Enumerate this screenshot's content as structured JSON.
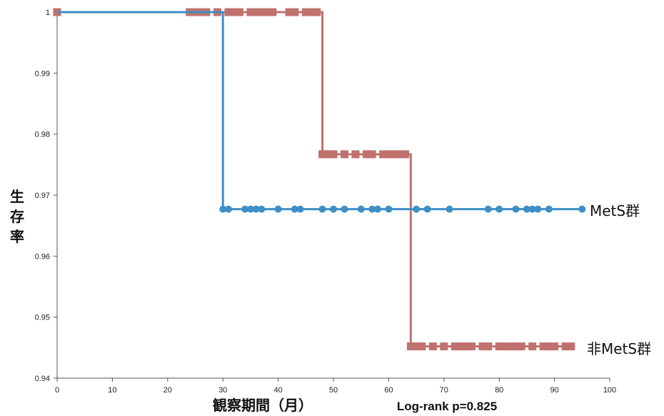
{
  "chart_data": {
    "type": "line",
    "title": "",
    "xlabel": "観察期間（月）",
    "ylabel": "生存率",
    "annotation": "Log-rank p=0.825",
    "xlim": [
      0,
      100
    ],
    "ylim": [
      0.94,
      1.0
    ],
    "x_ticks": [
      0,
      10,
      20,
      30,
      40,
      50,
      60,
      70,
      80,
      90,
      100
    ],
    "x_tick_labels": [
      "0",
      "10",
      "20",
      "30",
      "40",
      "50",
      "60",
      "70",
      "80",
      "90",
      "100"
    ],
    "y_ticks": [
      0.94,
      0.95,
      0.96,
      0.97,
      0.98,
      0.99,
      1.0
    ],
    "y_tick_labels": [
      "0.94",
      "0.95",
      "0.96",
      "0.97",
      "0.98",
      "0.99",
      "1"
    ],
    "grid": false,
    "series": [
      {
        "name": "MetS群",
        "color": "#3d8fc6",
        "marker": "circle",
        "step_x": [
          0,
          30,
          95
        ],
        "step_y": [
          1.0,
          0.9677,
          0.9677
        ],
        "censored_x": [
          30,
          31,
          34,
          35,
          36,
          37,
          40,
          43,
          44,
          48,
          50,
          52,
          55,
          57,
          58,
          60,
          65,
          67,
          71,
          78,
          80,
          83,
          85,
          86,
          87,
          89,
          95
        ],
        "censored_y": [
          0.9677,
          0.9677,
          0.9677,
          0.9677,
          0.9677,
          0.9677,
          0.9677,
          0.9677,
          0.9677,
          0.9677,
          0.9677,
          0.9677,
          0.9677,
          0.9677,
          0.9677,
          0.9677,
          0.9677,
          0.9677,
          0.9677,
          0.9677,
          0.9677,
          0.9677,
          0.9677,
          0.9677,
          0.9677,
          0.9677,
          0.9677
        ]
      },
      {
        "name": "非MetS群",
        "color": "#c0716e",
        "marker": "square",
        "step_x": [
          0,
          48,
          64,
          93
        ],
        "step_y": [
          1.0,
          0.9767,
          0.9452,
          0.9452
        ],
        "censored_x": [
          0,
          24,
          25,
          26,
          27,
          29,
          31,
          32,
          33,
          35,
          36,
          37,
          38,
          39,
          42,
          43,
          45,
          46,
          47,
          48,
          49,
          50,
          52,
          54,
          56,
          57,
          59,
          60,
          61,
          62,
          63,
          64,
          65,
          66,
          68,
          70,
          72,
          73,
          74,
          75,
          77,
          78,
          80,
          81,
          82,
          83,
          84,
          86,
          88,
          89,
          90,
          92,
          93
        ],
        "censored_y": [
          1.0,
          1.0,
          1.0,
          1.0,
          1.0,
          1.0,
          1.0,
          1.0,
          1.0,
          1.0,
          1.0,
          1.0,
          1.0,
          1.0,
          1.0,
          1.0,
          1.0,
          1.0,
          1.0,
          0.9767,
          0.9767,
          0.9767,
          0.9767,
          0.9767,
          0.9767,
          0.9767,
          0.9767,
          0.9767,
          0.9767,
          0.9767,
          0.9767,
          0.9452,
          0.9452,
          0.9452,
          0.9452,
          0.9452,
          0.9452,
          0.9452,
          0.9452,
          0.9452,
          0.9452,
          0.9452,
          0.9452,
          0.9452,
          0.9452,
          0.9452,
          0.9452,
          0.9452,
          0.9452,
          0.9452,
          0.9452,
          0.9452,
          0.9452
        ]
      }
    ]
  }
}
